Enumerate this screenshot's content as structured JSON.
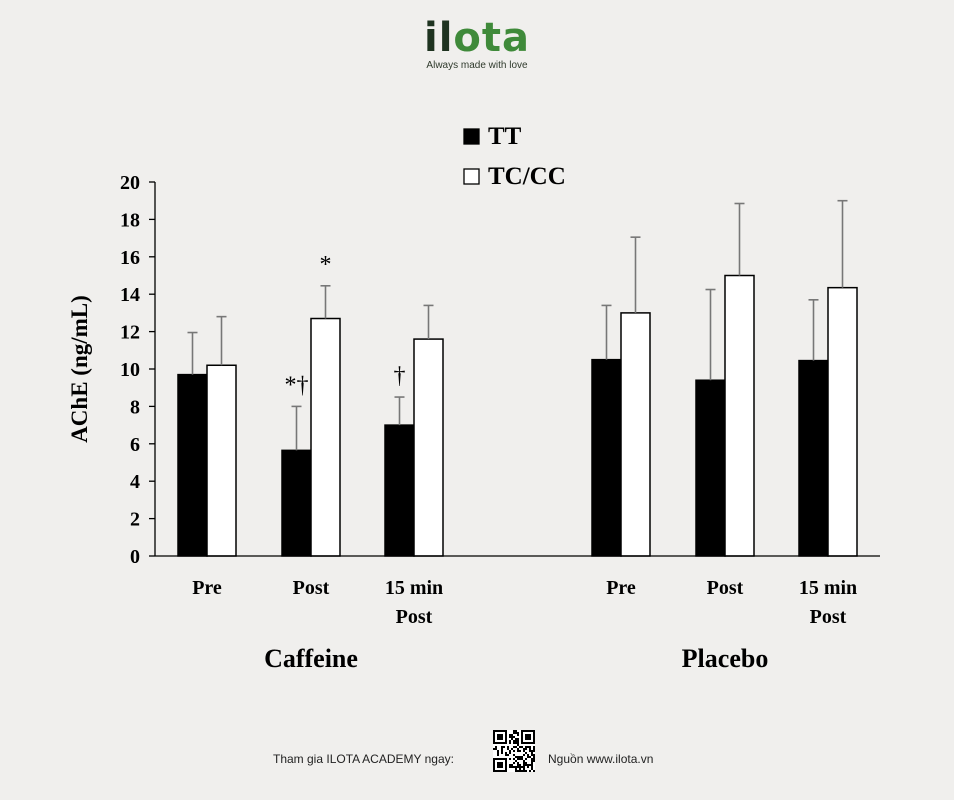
{
  "brand": {
    "logo_text": "ilota",
    "tagline": "Always made with love",
    "colors": {
      "dark": "#1e3320",
      "green": "#3f8a3a"
    }
  },
  "chart_data": {
    "type": "bar",
    "ylabel": "AChE (ng/mL)",
    "ylim": [
      0,
      20
    ],
    "yticks": [
      0,
      2,
      4,
      6,
      8,
      10,
      12,
      14,
      16,
      18,
      20
    ],
    "grid": false,
    "legend_position": "top-center",
    "groups": [
      {
        "name": "Caffeine",
        "categories": [
          "Pre",
          "Post",
          "15 min Post"
        ]
      },
      {
        "name": "Placebo",
        "categories": [
          "Pre",
          "Post",
          "15 min Post"
        ]
      }
    ],
    "series": [
      {
        "name": "TT",
        "color": "#000000",
        "values": [
          9.7,
          5.65,
          7.0,
          10.5,
          9.4,
          10.45
        ],
        "errors": [
          2.25,
          2.35,
          1.5,
          2.9,
          4.85,
          3.25
        ]
      },
      {
        "name": "TC/CC",
        "color": "#ffffff",
        "values": [
          10.2,
          12.7,
          11.6,
          13.0,
          15.0,
          14.35
        ],
        "errors": [
          2.6,
          1.75,
          1.8,
          4.05,
          3.85,
          4.65
        ]
      }
    ],
    "annotations": [
      {
        "series": 0,
        "index": 1,
        "text": "*†"
      },
      {
        "series": 1,
        "index": 1,
        "text": "*"
      },
      {
        "series": 0,
        "index": 2,
        "text": "†"
      }
    ]
  },
  "footer": {
    "join_text": "Tham gia ILOTA ACADEMY ngay:",
    "qr_icon": "qr-code-icon",
    "source_text": "Nguồn www.ilota.vn"
  }
}
